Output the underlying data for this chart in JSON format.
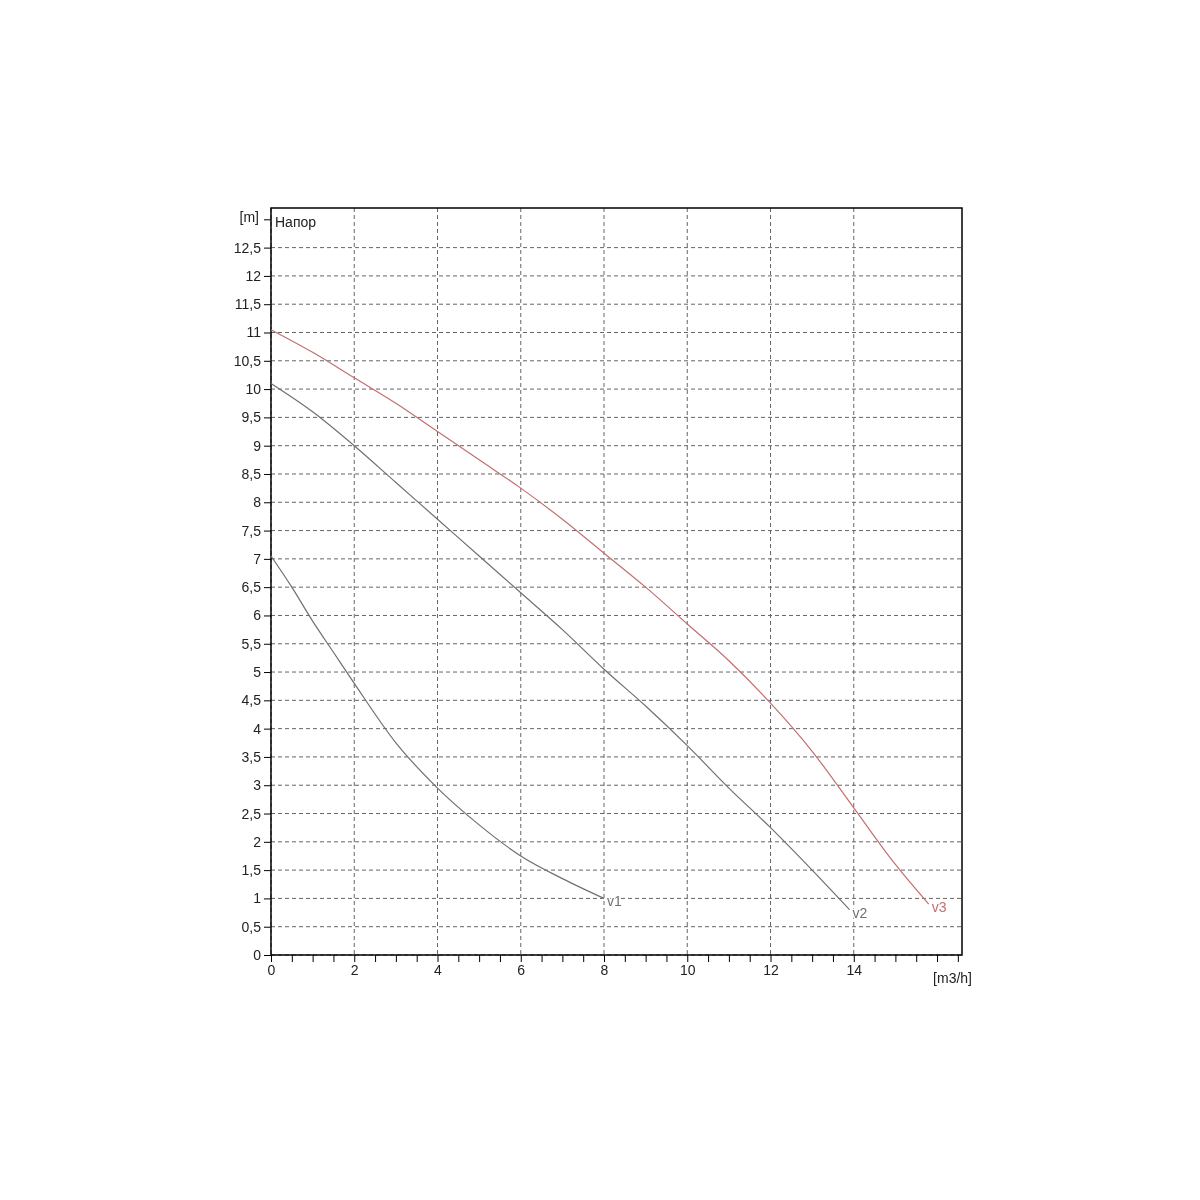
{
  "chart_data": {
    "type": "line",
    "title": "Напор",
    "xlabel": "[m3/h]",
    "ylabel": "[m]",
    "xlim": [
      0,
      16.6
    ],
    "ylim": [
      0,
      13.2
    ],
    "xticks": [
      0,
      {
        "value": 0.5,
        "label": null
      },
      {
        "value": 1,
        "label": null
      },
      {
        "value": 1.5,
        "label": null
      },
      2,
      {
        "value": 2.5,
        "label": null
      },
      {
        "value": 3,
        "label": null
      },
      {
        "value": 3.5,
        "label": null
      },
      4,
      {
        "value": 4.5,
        "label": null
      },
      {
        "value": 5,
        "label": null
      },
      {
        "value": 5.5,
        "label": null
      },
      6,
      {
        "value": 6.5,
        "label": null
      },
      {
        "value": 7,
        "label": null
      },
      {
        "value": 7.5,
        "label": null
      },
      8,
      {
        "value": 8.5,
        "label": null
      },
      {
        "value": 9,
        "label": null
      },
      {
        "value": 9.5,
        "label": null
      },
      10,
      {
        "value": 10.5,
        "label": null
      },
      {
        "value": 11,
        "label": null
      },
      {
        "value": 11.5,
        "label": null
      },
      12,
      {
        "value": 12.5,
        "label": null
      },
      {
        "value": 13,
        "label": null
      },
      {
        "value": 13.5,
        "label": null
      },
      14,
      {
        "value": 14.5,
        "label": null
      },
      {
        "value": 15,
        "label": null
      },
      {
        "value": 15.5,
        "label": null
      },
      {
        "value": 16,
        "label": null
      },
      {
        "value": 16.5,
        "label": null
      }
    ],
    "yticks": [
      0,
      {
        "value": 0.5,
        "label": "0,5"
      },
      1,
      {
        "value": 1.5,
        "label": "1,5"
      },
      2,
      {
        "value": 2.5,
        "label": "2,5"
      },
      3,
      {
        "value": 3.5,
        "label": "3,5"
      },
      4,
      {
        "value": 4.5,
        "label": "4,5"
      },
      5,
      {
        "value": 5.5,
        "label": "5,5"
      },
      6,
      {
        "value": 6.5,
        "label": "6,5"
      },
      7,
      {
        "value": 7.5,
        "label": "7,5"
      },
      8,
      {
        "value": 8.5,
        "label": "8,5"
      },
      9,
      {
        "value": 9.5,
        "label": "9,5"
      },
      10,
      {
        "value": 10.5,
        "label": "10,5"
      },
      11,
      {
        "value": 11.5,
        "label": "11,5"
      },
      12,
      {
        "value": 12.5,
        "label": "12,5"
      },
      {
        "value": 13,
        "label": null
      }
    ],
    "grid": true,
    "marker": "none",
    "line_style": "solid",
    "legend": false,
    "series": [
      {
        "name": "v1",
        "color": "#707070",
        "x": [
          0,
          0.5,
          1,
          1.5,
          2,
          3,
          4,
          5,
          6,
          7,
          8
        ],
        "values": [
          7.05,
          6.5,
          5.9,
          5.35,
          4.8,
          3.75,
          2.95,
          2.3,
          1.75,
          1.35,
          1.0
        ]
      },
      {
        "name": "v2",
        "color": "#707070",
        "x": [
          0,
          1,
          2,
          3,
          4,
          5,
          6,
          7,
          8,
          9,
          10,
          11,
          12,
          13,
          13.9
        ],
        "values": [
          10.1,
          9.6,
          9.0,
          8.35,
          7.7,
          7.05,
          6.4,
          5.75,
          5.05,
          4.4,
          3.7,
          2.95,
          2.25,
          1.5,
          0.8
        ]
      },
      {
        "name": "v3",
        "color": "#c07070",
        "x": [
          0,
          1,
          2,
          3,
          4,
          5,
          6,
          7,
          8,
          9,
          10,
          11,
          12,
          13,
          14,
          15,
          15.8
        ],
        "values": [
          11.05,
          10.65,
          10.2,
          9.75,
          9.25,
          8.75,
          8.25,
          7.7,
          7.1,
          6.5,
          5.85,
          5.2,
          4.45,
          3.6,
          2.6,
          1.6,
          0.9
        ]
      }
    ]
  }
}
